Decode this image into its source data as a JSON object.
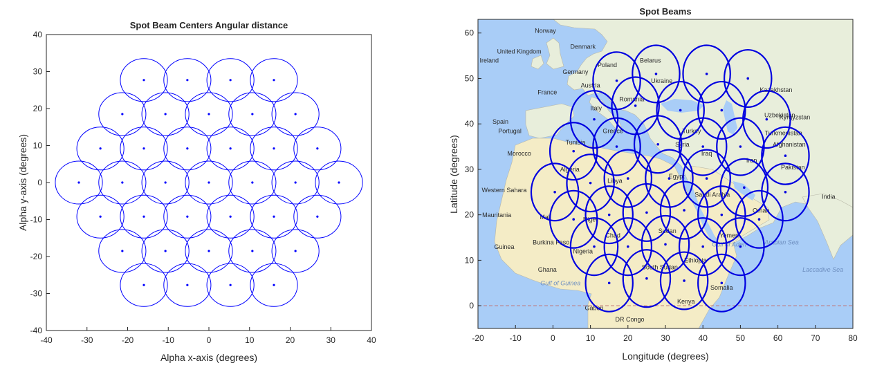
{
  "chart_data": [
    {
      "type": "scatter",
      "title": "Spot Beam Centers Angular distance",
      "xlabel": "Alpha x-axis (degrees)",
      "ylabel": "Alpha y-axis (degrees)",
      "xlim": [
        -40,
        40
      ],
      "ylim": [
        -40,
        40
      ],
      "xticks": [
        -40,
        -30,
        -20,
        -10,
        0,
        10,
        20,
        30,
        40
      ],
      "yticks": [
        -40,
        -30,
        -20,
        -10,
        0,
        10,
        20,
        30,
        40
      ],
      "grid": false,
      "beam_radius": 5.8,
      "color": "#0000ff",
      "series": [
        {
          "x": [
            -16,
            -5.3,
            5.3,
            16,
            -21.3,
            -10.7,
            0,
            10.7,
            21.3,
            -26.7,
            -16,
            -5.3,
            5.3,
            16,
            26.7,
            -32,
            -21.3,
            -10.7,
            0,
            10.7,
            21.3,
            32,
            -26.7,
            -16,
            -5.3,
            5.3,
            16,
            26.7,
            -21.3,
            -10.7,
            0,
            10.7,
            21.3,
            -16,
            -5.3,
            5.3,
            16
          ],
          "y": [
            27.7,
            27.7,
            27.7,
            27.7,
            18.5,
            18.5,
            18.5,
            18.5,
            18.5,
            9.2,
            9.2,
            9.2,
            9.2,
            9.2,
            9.2,
            0,
            0,
            0,
            0,
            0,
            0,
            0,
            -9.2,
            -9.2,
            -9.2,
            -9.2,
            -9.2,
            -9.2,
            -18.5,
            -18.5,
            -18.5,
            -18.5,
            -18.5,
            -27.7,
            -27.7,
            -27.7,
            -27.7
          ]
        }
      ]
    },
    {
      "type": "scatter",
      "title": "Spot Beams",
      "xlabel": "Longitude (degrees)",
      "ylabel": "Latitude (degrees)",
      "xlim": [
        -20,
        80
      ],
      "ylim": [
        -5,
        63
      ],
      "xticks": [
        -20,
        -10,
        0,
        10,
        20,
        30,
        40,
        50,
        60,
        70,
        80
      ],
      "yticks": [
        0,
        10,
        20,
        30,
        40,
        50,
        60
      ],
      "grid": false,
      "beam_radius": 6.3,
      "color": "#0000e0",
      "reference_line": {
        "y": 0,
        "style": "dashed",
        "color": "#c07070"
      },
      "series": [
        {
          "x": [
            17,
            27.5,
            41,
            52,
            11,
            22,
            34,
            45,
            57,
            5.5,
            17,
            28,
            40,
            50,
            62,
            0.5,
            10,
            20,
            31,
            41,
            51,
            62,
            5.5,
            15,
            25,
            35,
            45,
            55,
            11,
            20,
            30,
            40,
            50,
            15,
            25,
            35,
            45
          ],
          "y": [
            49.5,
            51,
            51,
            50,
            41,
            44,
            43,
            43,
            41,
            34,
            35,
            35.5,
            35,
            35,
            33,
            25,
            27,
            28,
            28,
            28,
            26,
            25,
            19,
            20,
            20.5,
            21,
            20,
            19,
            13,
            13,
            13.5,
            13,
            13,
            5,
            6,
            5.5,
            5
          ]
        }
      ],
      "map_labels": [
        "Norway",
        "United Kingdom",
        "Ireland",
        "Denmark",
        "Poland",
        "Belarus",
        "Germany",
        "Ukraine",
        "Austria",
        "France",
        "Romania",
        "Kazakhstan",
        "Italy",
        "Uzbekistan",
        "Kyrgyzstan",
        "Spain",
        "Greece",
        "Turkey",
        "Turkmenistan",
        "Portugal",
        "Tunisia",
        "Syria",
        "Iraq",
        "Afghanistan",
        "Morocco",
        "Iran",
        "Pakistan",
        "Algeria",
        "Libya",
        "Egypt",
        "Western Sahara",
        "Saudi Arabia",
        "India",
        "Mauritania",
        "Mali",
        "Niger",
        "Oman",
        "Chad",
        "Sudan",
        "Yemen",
        "Burkina Faso",
        "Guinea",
        "Nigeria",
        "Gulf of Aden",
        "Arabian Sea",
        "Ghana",
        "South Sudan",
        "Ethiopia",
        "Laccadive Sea",
        "Gulf of Guinea",
        "Somalia",
        "Gabon",
        "Kenya",
        "DR Congo"
      ]
    }
  ]
}
